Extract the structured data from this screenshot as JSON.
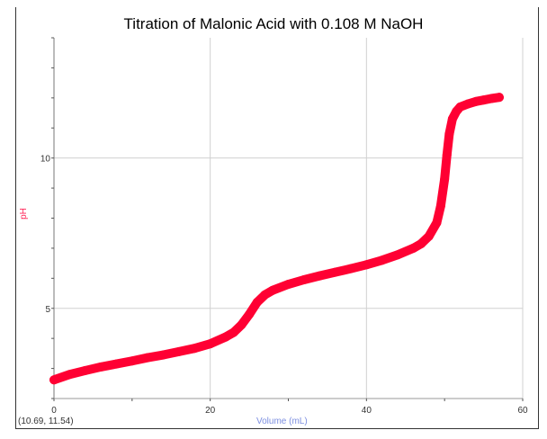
{
  "chart_data": {
    "type": "scatter",
    "title": "Titration of Malonic Acid with 0.108 M NaOH",
    "xlabel": "Volume (mL)",
    "ylabel": "pH",
    "xlim": [
      0,
      60
    ],
    "ylim": [
      2,
      14
    ],
    "x_ticks": [
      0,
      20,
      40,
      60
    ],
    "y_ticks": [
      5,
      10
    ],
    "grid": true,
    "color": "#ff0033",
    "points": [
      [
        0,
        2.62
      ],
      [
        2,
        2.8
      ],
      [
        4,
        2.93
      ],
      [
        6,
        3.05
      ],
      [
        8,
        3.15
      ],
      [
        10,
        3.25
      ],
      [
        12,
        3.36
      ],
      [
        14,
        3.45
      ],
      [
        16,
        3.56
      ],
      [
        18,
        3.67
      ],
      [
        20,
        3.82
      ],
      [
        22,
        4.05
      ],
      [
        23,
        4.2
      ],
      [
        24,
        4.45
      ],
      [
        25,
        4.8
      ],
      [
        26,
        5.2
      ],
      [
        27,
        5.45
      ],
      [
        28,
        5.6
      ],
      [
        30,
        5.8
      ],
      [
        32,
        5.95
      ],
      [
        34,
        6.08
      ],
      [
        36,
        6.2
      ],
      [
        38,
        6.32
      ],
      [
        40,
        6.45
      ],
      [
        42,
        6.6
      ],
      [
        44,
        6.78
      ],
      [
        46,
        7.0
      ],
      [
        47,
        7.15
      ],
      [
        48,
        7.4
      ],
      [
        49,
        7.85
      ],
      [
        49.5,
        8.4
      ],
      [
        50,
        9.3
      ],
      [
        50.3,
        10.1
      ],
      [
        50.6,
        10.8
      ],
      [
        51,
        11.3
      ],
      [
        51.5,
        11.55
      ],
      [
        52,
        11.7
      ],
      [
        53,
        11.8
      ],
      [
        54,
        11.88
      ],
      [
        55,
        11.93
      ],
      [
        56,
        11.98
      ],
      [
        57,
        12.02
      ]
    ]
  },
  "readout": "(10.69, 11.54)"
}
